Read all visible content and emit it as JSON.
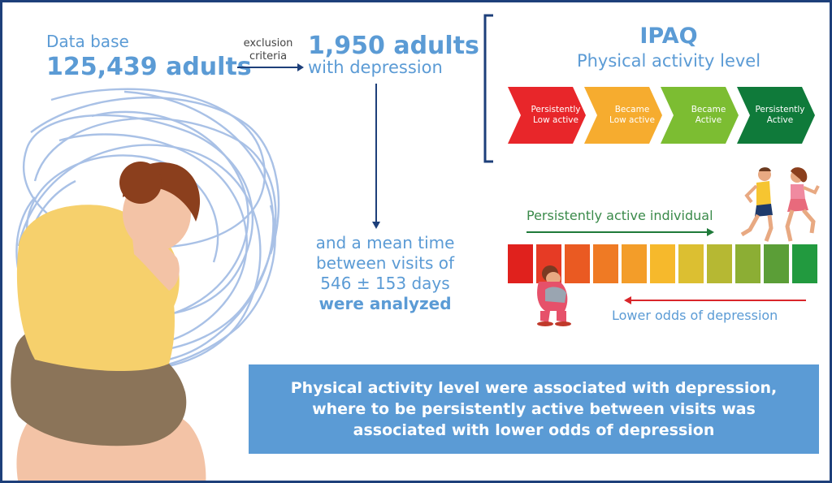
{
  "database": {
    "label": "Data base",
    "count": "125,439 adults"
  },
  "exclusion_label": "exclusion criteria",
  "depression": {
    "count": "1,950 adults",
    "label": "with depression"
  },
  "visits": {
    "line1": "and a mean time",
    "line2": "between visits of",
    "line3": "546 ± 153 days",
    "line4": "were analyzed"
  },
  "ipaq": {
    "title": "IPAQ",
    "subtitle": "Physical activity level",
    "categories": [
      {
        "line1": "Persistently",
        "line2": "Low active",
        "color": "#e8262a"
      },
      {
        "line1": "Became",
        "line2": "Low active",
        "color": "#f6ac2f"
      },
      {
        "line1": "Became",
        "line2": "Active",
        "color": "#7cbd32"
      },
      {
        "line1": "Persistently",
        "line2": "Active",
        "color": "#0f7a3a"
      }
    ]
  },
  "gradient_scale": {
    "colors": [
      "#e0211d",
      "#e63b25",
      "#ea5a22",
      "#ef7a24",
      "#f39d29",
      "#f6b92c",
      "#dcbf31",
      "#b6b833",
      "#8cae34",
      "#5b9e37",
      "#229a3f"
    ],
    "persistently_active_label": "Persistently active individual",
    "lower_odds_label": "Lower odds of depression"
  },
  "conclusion": {
    "line1": "Physical activity level were associated with depression,",
    "line2": "where to be persistently active between visits was",
    "line3": "associated with lower odds of depression"
  }
}
